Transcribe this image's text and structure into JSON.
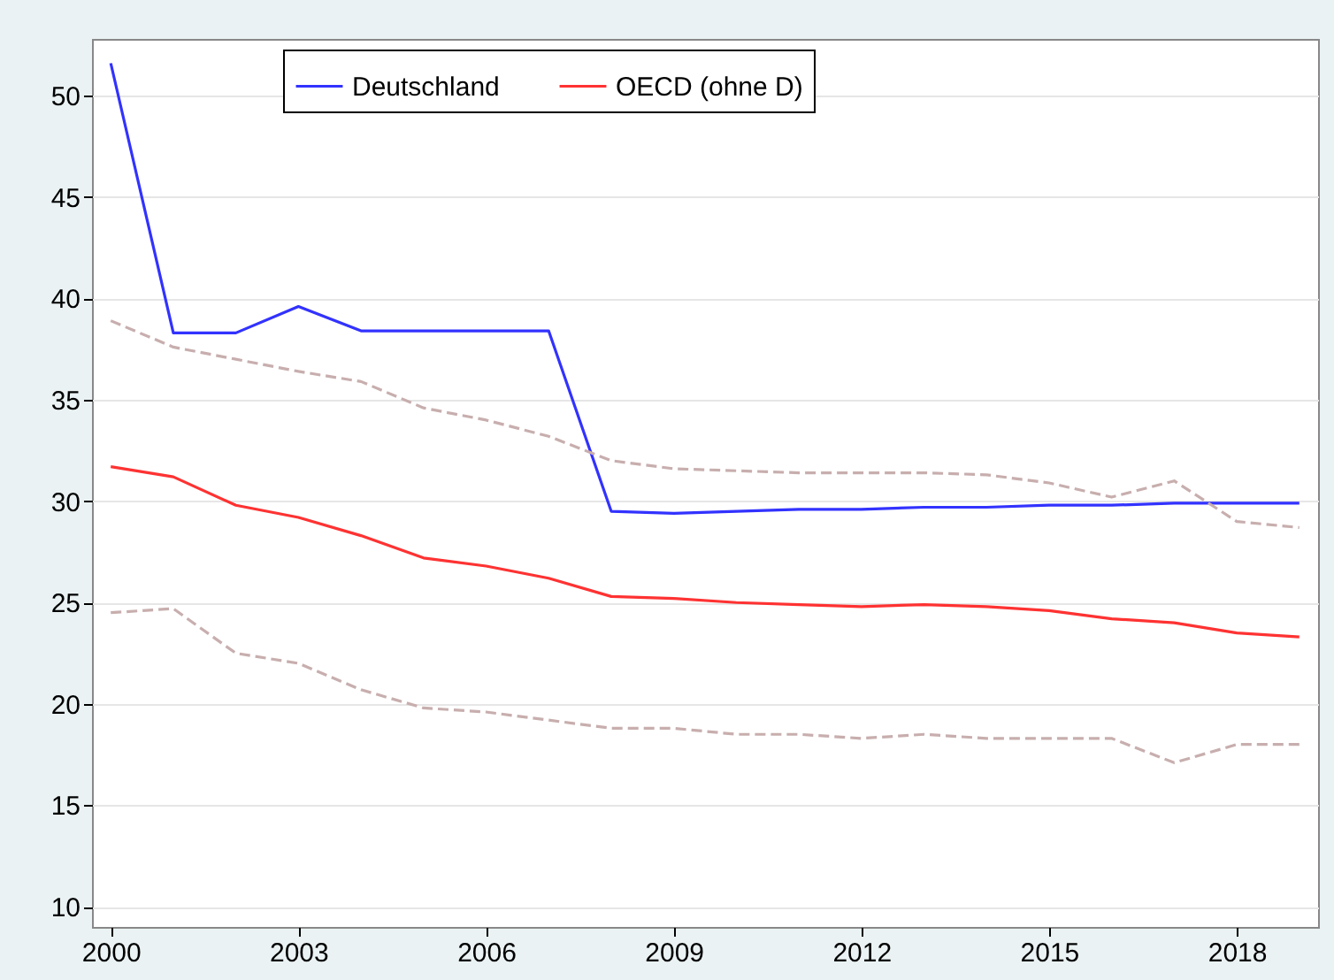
{
  "chart_data": {
    "type": "line",
    "x": [
      2000,
      2001,
      2002,
      2003,
      2004,
      2005,
      2006,
      2007,
      2008,
      2009,
      2010,
      2011,
      2012,
      2013,
      2014,
      2015,
      2016,
      2017,
      2018,
      2019
    ],
    "series": [
      {
        "name": "Deutschland",
        "color": "#3232ff",
        "line_style": "solid",
        "values": [
          51.6,
          38.3,
          38.3,
          39.6,
          38.4,
          38.4,
          38.4,
          38.4,
          29.5,
          29.4,
          29.5,
          29.6,
          29.6,
          29.7,
          29.7,
          29.8,
          29.8,
          29.9,
          29.9,
          29.9
        ]
      },
      {
        "name": "OECD (ohne D)",
        "color": "#ff3232",
        "line_style": "solid",
        "values": [
          31.7,
          31.2,
          29.8,
          29.2,
          28.3,
          27.2,
          26.8,
          26.2,
          25.3,
          25.2,
          25.0,
          24.9,
          24.8,
          24.9,
          24.8,
          24.6,
          24.2,
          24.0,
          23.5,
          23.3
        ]
      },
      {
        "color": "#c8aeae",
        "line_style": "dashed",
        "values": [
          38.9,
          37.6,
          37.0,
          36.4,
          35.9,
          34.6,
          34.0,
          33.2,
          32.0,
          31.6,
          31.5,
          31.4,
          31.4,
          31.4,
          31.3,
          30.9,
          30.2,
          31.0,
          29.0,
          28.7
        ]
      },
      {
        "color": "#c8aeae",
        "line_style": "dashed",
        "values": [
          24.5,
          24.7,
          22.5,
          22.0,
          20.7,
          19.8,
          19.6,
          19.2,
          18.8,
          18.8,
          18.5,
          18.5,
          18.3,
          18.5,
          18.3,
          18.3,
          18.3,
          17.1,
          18.0,
          18.0
        ]
      }
    ],
    "xlim": [
      1999.7,
      2019.3
    ],
    "xticks": [
      2000,
      2003,
      2006,
      2009,
      2012,
      2015,
      2018
    ],
    "ylim": [
      9,
      52.8
    ],
    "yticks": [
      10,
      15,
      20,
      25,
      30,
      35,
      40,
      45,
      50
    ],
    "grid": "y",
    "legend": "top",
    "marker": "none"
  }
}
